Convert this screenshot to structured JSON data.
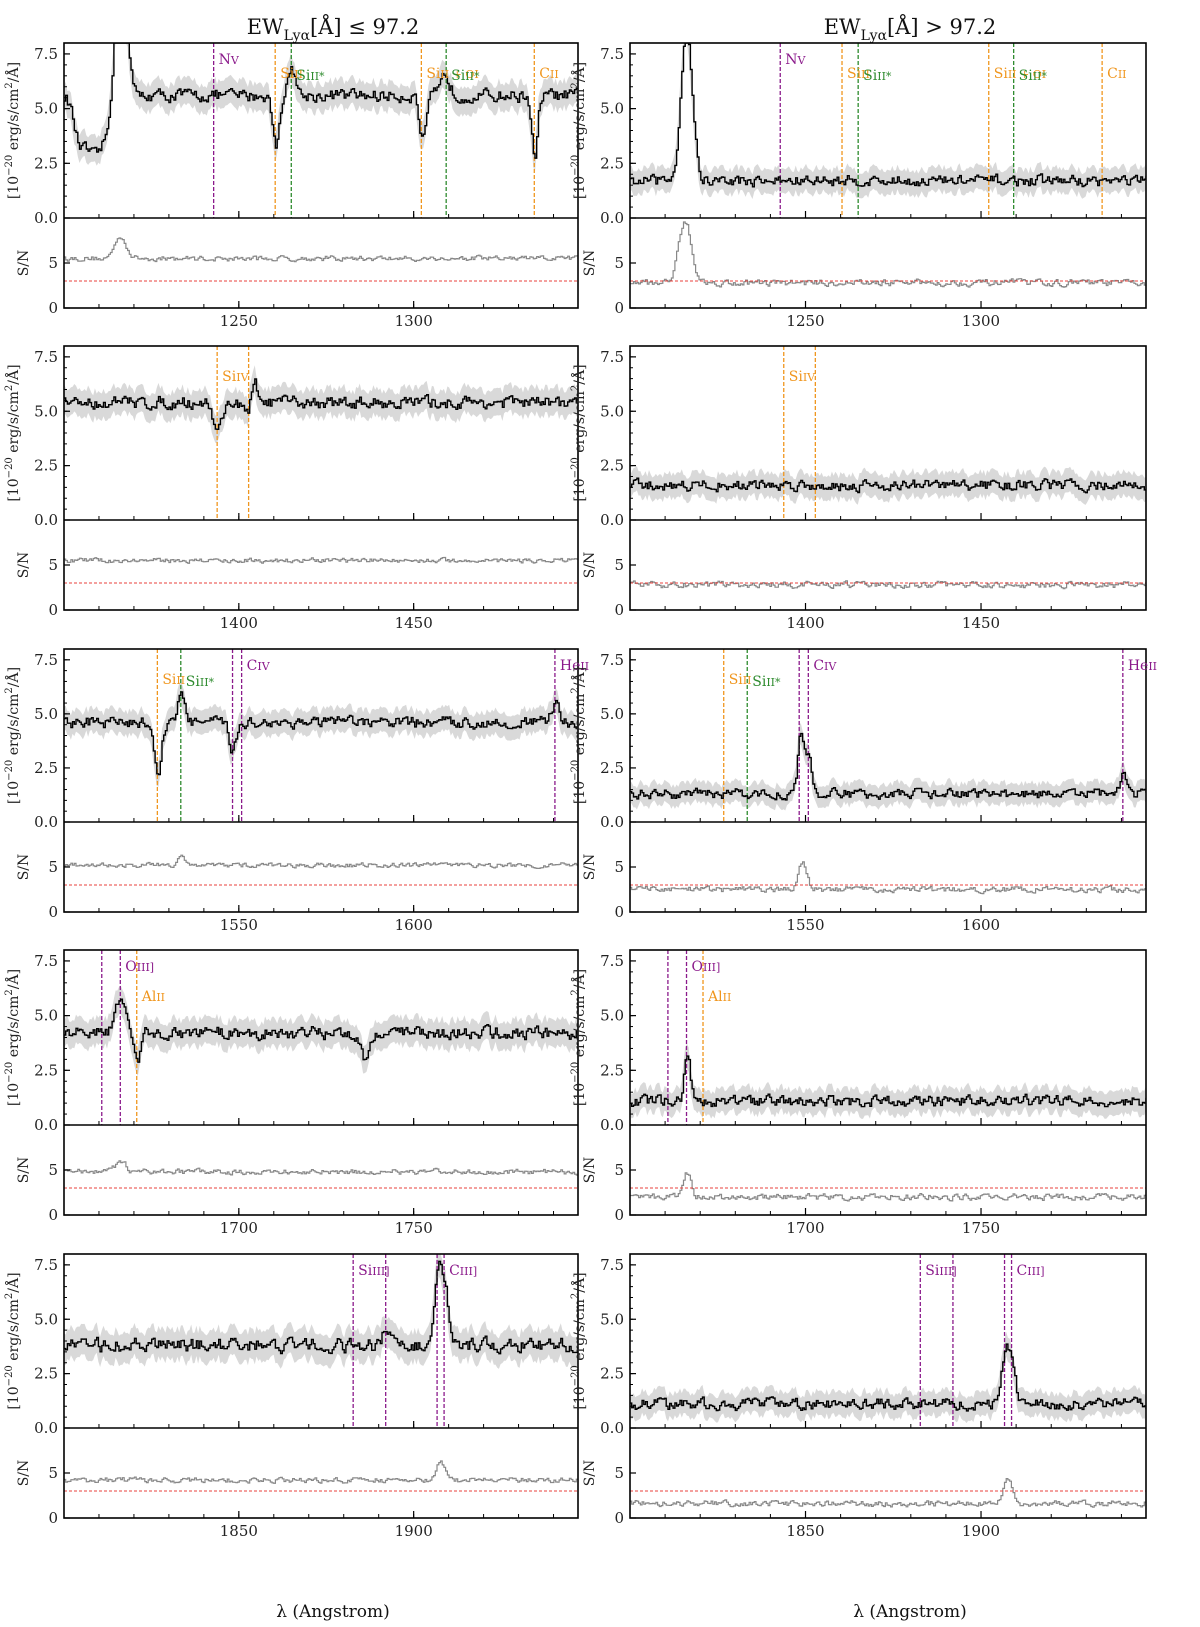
{
  "figure": {
    "column_titles": [
      {
        "base": "EW",
        "sub": "Lyα",
        "rest": "[Å] ≤ 97.2"
      },
      {
        "base": "EW",
        "sub": "Lyα",
        "rest": "[Å] > 97.2"
      }
    ],
    "flux_ylabel": {
      "pre": "[10",
      "exp": "−20",
      "mid": " erg/s/cm",
      "exp2": "2",
      "post": "/Å]"
    },
    "sn_ylabel": "S/N",
    "xlabel": "λ (Angstrom)",
    "flux_ticks": [
      "0.0",
      "2.5",
      "5.0",
      "7.5"
    ],
    "sn_ticks": [
      "0",
      "5"
    ],
    "sn_threshold": 3,
    "colors": {
      "flux": "#000000",
      "flux_band": "#d9d9d9",
      "sn": "#888888",
      "threshold": "#e8413c",
      "purple": "#8b1a8b",
      "orange": "#f0961e",
      "green": "#2e8b2e"
    }
  },
  "chart_data": [
    {
      "type": "line",
      "panel": "row1-left",
      "xlim": [
        1200,
        1347
      ],
      "flux_ylim": [
        0,
        8
      ],
      "sn_ylim": [
        0,
        10
      ],
      "xticks": [
        "1250",
        "1300"
      ],
      "xtick_values": [
        1250,
        1300
      ],
      "flux_level": 5.6,
      "flux_noise": 0.45,
      "sn_level": 5.5,
      "sn_noise": 0.45,
      "features": [
        {
          "center": 1204,
          "width": 1.5,
          "amp": -1.5
        },
        {
          "center": 1208,
          "width": 2.5,
          "amp": -2.5
        },
        {
          "center": 1213,
          "width": 2.5,
          "amp": -1.5
        },
        {
          "center": 1216,
          "width": 1.6,
          "amp": 7.5
        },
        {
          "center": 1260.4,
          "width": 0.9,
          "amp": -2.3
        },
        {
          "center": 1265,
          "width": 1,
          "amp": 1.3
        },
        {
          "center": 1302.5,
          "width": 1,
          "amp": -2.1
        },
        {
          "center": 1309,
          "width": 1.2,
          "amp": 0.9
        },
        {
          "center": 1334.5,
          "width": 0.8,
          "amp": -3.0
        }
      ],
      "sn_features": [
        {
          "center": 1216,
          "width": 1.6,
          "amp": 2.5
        }
      ],
      "lines": [
        {
          "x": 1242.8,
          "color": "purple",
          "name": "N",
          "ion": "V"
        },
        {
          "x": 1260.4,
          "color": "orange",
          "name": "Si",
          "ion": "II"
        },
        {
          "x": 1265.0,
          "color": "green",
          "name": "Si",
          "ion": "II*"
        },
        {
          "x": 1302.2,
          "color": "orange",
          "name": "Si",
          "ion": "II + O",
          "ion2": "I"
        },
        {
          "x": 1309.3,
          "color": "green",
          "name": "Si",
          "ion": "II*"
        },
        {
          "x": 1334.5,
          "color": "orange",
          "name": "C",
          "ion": "II"
        }
      ]
    },
    {
      "type": "line",
      "panel": "row1-right",
      "xlim": [
        1200,
        1347
      ],
      "flux_ylim": [
        0,
        8
      ],
      "sn_ylim": [
        0,
        10
      ],
      "xticks": [
        "1250",
        "1300"
      ],
      "xtick_values": [
        1250,
        1300
      ],
      "flux_level": 1.7,
      "flux_noise": 0.4,
      "sn_level": 2.8,
      "sn_noise": 0.55,
      "features": [
        {
          "center": 1216,
          "width": 1.6,
          "amp": 7.0
        }
      ],
      "sn_features": [
        {
          "center": 1215.5,
          "width": 1.8,
          "amp": 7.0
        }
      ],
      "lines": [
        {
          "x": 1242.8,
          "color": "purple",
          "name": "N",
          "ion": "V"
        },
        {
          "x": 1260.4,
          "color": "orange",
          "name": "Si",
          "ion": "II"
        },
        {
          "x": 1265.0,
          "color": "green",
          "name": "Si",
          "ion": "II*"
        },
        {
          "x": 1302.2,
          "color": "orange",
          "name": "Si",
          "ion": "II + O",
          "ion2": "I"
        },
        {
          "x": 1309.3,
          "color": "green",
          "name": "Si",
          "ion": "II*"
        },
        {
          "x": 1334.5,
          "color": "orange",
          "name": "C",
          "ion": "II"
        }
      ]
    },
    {
      "type": "line",
      "panel": "row2-left",
      "xlim": [
        1350,
        1497
      ],
      "flux_ylim": [
        0,
        8
      ],
      "sn_ylim": [
        0,
        10
      ],
      "xticks": [
        "1400",
        "1450"
      ],
      "xtick_values": [
        1400,
        1450
      ],
      "flux_level": 5.4,
      "flux_noise": 0.45,
      "sn_level": 5.5,
      "sn_noise": 0.4,
      "features": [
        {
          "center": 1393.8,
          "width": 1.2,
          "amp": -1.3
        },
        {
          "center": 1402.8,
          "width": 1.2,
          "amp": -1.0
        },
        {
          "center": 1404,
          "width": 1,
          "amp": 1.4
        }
      ],
      "sn_features": [],
      "lines": [
        {
          "x": 1393.8,
          "color": "orange",
          "name": "Si",
          "ion": "IV"
        },
        {
          "x": 1402.8,
          "color": "orange",
          "name": "",
          "ion": ""
        }
      ]
    },
    {
      "type": "line",
      "panel": "row2-right",
      "xlim": [
        1350,
        1497
      ],
      "flux_ylim": [
        0,
        8
      ],
      "sn_ylim": [
        0,
        10
      ],
      "xticks": [
        "1400",
        "1450"
      ],
      "xtick_values": [
        1400,
        1450
      ],
      "flux_level": 1.6,
      "flux_noise": 0.4,
      "sn_level": 2.8,
      "sn_noise": 0.55,
      "features": [],
      "sn_features": [],
      "lines": [
        {
          "x": 1393.8,
          "color": "orange",
          "name": "Si",
          "ion": "IV"
        },
        {
          "x": 1402.8,
          "color": "orange",
          "name": "",
          "ion": ""
        }
      ]
    },
    {
      "type": "line",
      "panel": "row3-left",
      "xlim": [
        1500,
        1647
      ],
      "flux_ylim": [
        0,
        8
      ],
      "sn_ylim": [
        0,
        10
      ],
      "xticks": [
        "1550",
        "1600"
      ],
      "xtick_values": [
        1550,
        1600
      ],
      "flux_level": 4.6,
      "flux_noise": 0.4,
      "sn_level": 5.2,
      "sn_noise": 0.4,
      "features": [
        {
          "center": 1526.7,
          "width": 1,
          "amp": -2.3
        },
        {
          "center": 1533.4,
          "width": 1,
          "amp": 1.4
        },
        {
          "center": 1548,
          "width": 1,
          "amp": -1.2
        },
        {
          "center": 1640.4,
          "width": 1,
          "amp": 0.9
        }
      ],
      "sn_features": [
        {
          "center": 1533.4,
          "width": 1,
          "amp": 1.2
        }
      ],
      "lines": [
        {
          "x": 1526.7,
          "color": "orange",
          "name": "Si",
          "ion": "II"
        },
        {
          "x": 1533.4,
          "color": "green",
          "name": "Si",
          "ion": "II*"
        },
        {
          "x": 1548.2,
          "color": "purple",
          "name": "",
          "ion": ""
        },
        {
          "x": 1550.8,
          "color": "purple",
          "name": "C",
          "ion": "IV"
        },
        {
          "x": 1640.4,
          "color": "purple",
          "name": "He",
          "ion": "II"
        }
      ]
    },
    {
      "type": "line",
      "panel": "row3-right",
      "xlim": [
        1500,
        1647
      ],
      "flux_ylim": [
        0,
        8
      ],
      "sn_ylim": [
        0,
        10
      ],
      "xticks": [
        "1550",
        "1600"
      ],
      "xtick_values": [
        1550,
        1600
      ],
      "flux_level": 1.3,
      "flux_noise": 0.35,
      "sn_level": 2.5,
      "sn_noise": 0.5,
      "features": [
        {
          "center": 1548.6,
          "width": 0.9,
          "amp": 2.8
        },
        {
          "center": 1550.9,
          "width": 0.8,
          "amp": 1.7
        },
        {
          "center": 1640.4,
          "width": 0.9,
          "amp": 1.0
        }
      ],
      "sn_features": [
        {
          "center": 1549,
          "width": 1.2,
          "amp": 3.0
        }
      ],
      "lines": [
        {
          "x": 1526.7,
          "color": "orange",
          "name": "Si",
          "ion": "II"
        },
        {
          "x": 1533.4,
          "color": "green",
          "name": "Si",
          "ion": "II*"
        },
        {
          "x": 1548.2,
          "color": "purple",
          "name": "",
          "ion": ""
        },
        {
          "x": 1550.8,
          "color": "purple",
          "name": "C",
          "ion": "IV"
        },
        {
          "x": 1640.4,
          "color": "purple",
          "name": "He",
          "ion": "II"
        }
      ]
    },
    {
      "type": "line",
      "panel": "row4-left",
      "xlim": [
        1650,
        1797
      ],
      "flux_ylim": [
        0,
        8
      ],
      "sn_ylim": [
        0,
        10
      ],
      "xticks": [
        "1700",
        "1750"
      ],
      "xtick_values": [
        1700,
        1750
      ],
      "flux_level": 4.2,
      "flux_noise": 0.45,
      "sn_level": 4.8,
      "sn_noise": 0.45,
      "features": [
        {
          "center": 1666,
          "width": 1.5,
          "amp": 1.4
        },
        {
          "center": 1670.8,
          "width": 1,
          "amp": -1.2
        },
        {
          "center": 1736,
          "width": 1,
          "amp": -1.3
        }
      ],
      "sn_features": [
        {
          "center": 1666,
          "width": 1.5,
          "amp": 1.2
        }
      ],
      "lines": [
        {
          "x": 1660.8,
          "color": "purple",
          "name": "",
          "ion": ""
        },
        {
          "x": 1666.1,
          "color": "purple",
          "name": "O",
          "ion": "III]"
        },
        {
          "x": 1670.8,
          "color": "orange",
          "name": "Al",
          "ion": "II"
        }
      ]
    },
    {
      "type": "line",
      "panel": "row4-right",
      "xlim": [
        1650,
        1797
      ],
      "flux_ylim": [
        0,
        8
      ],
      "sn_ylim": [
        0,
        10
      ],
      "xticks": [
        "1700",
        "1750"
      ],
      "xtick_values": [
        1700,
        1750
      ],
      "flux_level": 1.1,
      "flux_noise": 0.4,
      "sn_level": 2.0,
      "sn_noise": 0.55,
      "features": [
        {
          "center": 1666.2,
          "width": 0.9,
          "amp": 1.9
        }
      ],
      "sn_features": [
        {
          "center": 1666.2,
          "width": 1,
          "amp": 2.6
        }
      ],
      "lines": [
        {
          "x": 1660.8,
          "color": "purple",
          "name": "",
          "ion": ""
        },
        {
          "x": 1666.1,
          "color": "purple",
          "name": "O",
          "ion": "III]"
        },
        {
          "x": 1670.8,
          "color": "orange",
          "name": "Al",
          "ion": "II"
        }
      ]
    },
    {
      "type": "line",
      "panel": "row5-left",
      "xlim": [
        1800,
        1947
      ],
      "flux_ylim": [
        0,
        8
      ],
      "sn_ylim": [
        0,
        10
      ],
      "xticks": [
        "1850",
        "1900"
      ],
      "xtick_values": [
        1850,
        1900
      ],
      "flux_level": 3.8,
      "flux_noise": 0.5,
      "sn_level": 4.2,
      "sn_noise": 0.45,
      "features": [
        {
          "center": 1892,
          "width": 1,
          "amp": 1.0
        },
        {
          "center": 1907,
          "width": 1.1,
          "amp": 3.4
        },
        {
          "center": 1909,
          "width": 0.9,
          "amp": 2.0
        }
      ],
      "sn_features": [
        {
          "center": 1907.5,
          "width": 1.2,
          "amp": 2.0
        }
      ],
      "lines": [
        {
          "x": 1882.7,
          "color": "purple",
          "name": "Si",
          "ion": "III]"
        },
        {
          "x": 1892.0,
          "color": "purple",
          "name": "",
          "ion": ""
        },
        {
          "x": 1906.7,
          "color": "purple",
          "name": "",
          "ion": ""
        },
        {
          "x": 1908.7,
          "color": "purple",
          "name": "C",
          "ion": "III]"
        }
      ]
    },
    {
      "type": "line",
      "panel": "row5-right",
      "xlim": [
        1800,
        1947
      ],
      "flux_ylim": [
        0,
        8
      ],
      "sn_ylim": [
        0,
        10
      ],
      "xticks": [
        "1850",
        "1900"
      ],
      "xtick_values": [
        1850,
        1900
      ],
      "flux_level": 1.1,
      "flux_noise": 0.4,
      "sn_level": 1.6,
      "sn_noise": 0.5,
      "features": [
        {
          "center": 1907,
          "width": 1.1,
          "amp": 2.5
        },
        {
          "center": 1909,
          "width": 0.9,
          "amp": 1.6
        }
      ],
      "sn_features": [
        {
          "center": 1907.5,
          "width": 1.2,
          "amp": 2.6
        }
      ],
      "lines": [
        {
          "x": 1882.7,
          "color": "purple",
          "name": "Si",
          "ion": "III]"
        },
        {
          "x": 1892.0,
          "color": "purple",
          "name": "",
          "ion": ""
        },
        {
          "x": 1906.7,
          "color": "purple",
          "name": "",
          "ion": ""
        },
        {
          "x": 1908.7,
          "color": "purple",
          "name": "C",
          "ion": "III]"
        }
      ]
    }
  ]
}
